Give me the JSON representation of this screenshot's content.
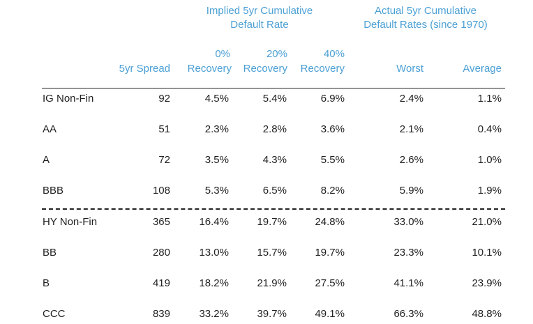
{
  "header_groups": {
    "implied": [
      "Implied 5yr Cumulative",
      "Default Rate"
    ],
    "actual": [
      "Actual 5yr Cumulative",
      "Default Rates (since 1970)"
    ]
  },
  "columns": {
    "spread": "5yr Spread",
    "rec0_top": "0%",
    "rec0_bottom": "Recovery",
    "rec20_top": "20%",
    "rec20_bottom": "Recovery",
    "rec40_top": "40%",
    "rec40_bottom": "Recovery",
    "worst": "Worst",
    "average": "Average"
  },
  "rows": [
    {
      "label": "IG Non-Fin",
      "spread": "92",
      "rec0": "4.5%",
      "rec20": "5.4%",
      "rec40": "6.9%",
      "worst": "2.4%",
      "average": "1.1%"
    },
    {
      "label": "AA",
      "spread": "51",
      "rec0": "2.3%",
      "rec20": "2.8%",
      "rec40": "3.6%",
      "worst": "2.1%",
      "average": "0.4%"
    },
    {
      "label": "A",
      "spread": "72",
      "rec0": "3.5%",
      "rec20": "4.3%",
      "rec40": "5.5%",
      "worst": "2.6%",
      "average": "1.0%"
    },
    {
      "label": "BBB",
      "spread": "108",
      "rec0": "5.3%",
      "rec20": "6.5%",
      "rec40": "8.2%",
      "worst": "5.9%",
      "average": "1.9%"
    },
    {
      "label": "HY Non-Fin",
      "spread": "365",
      "rec0": "16.4%",
      "rec20": "19.7%",
      "rec40": "24.8%",
      "worst": "33.0%",
      "average": "21.0%"
    },
    {
      "label": "BB",
      "spread": "280",
      "rec0": "13.0%",
      "rec20": "15.7%",
      "rec40": "19.7%",
      "worst": "23.3%",
      "average": "10.1%"
    },
    {
      "label": "B",
      "spread": "419",
      "rec0": "18.2%",
      "rec20": "21.9%",
      "rec40": "27.5%",
      "worst": "41.1%",
      "average": "23.9%"
    },
    {
      "label": "CCC",
      "spread": "839",
      "rec0": "33.2%",
      "rec20": "39.7%",
      "rec40": "49.1%",
      "worst": "66.3%",
      "average": "48.8%"
    }
  ],
  "colors": {
    "header": "#4a9fd4",
    "text": "#1f1f1f",
    "rule": "#222222"
  }
}
